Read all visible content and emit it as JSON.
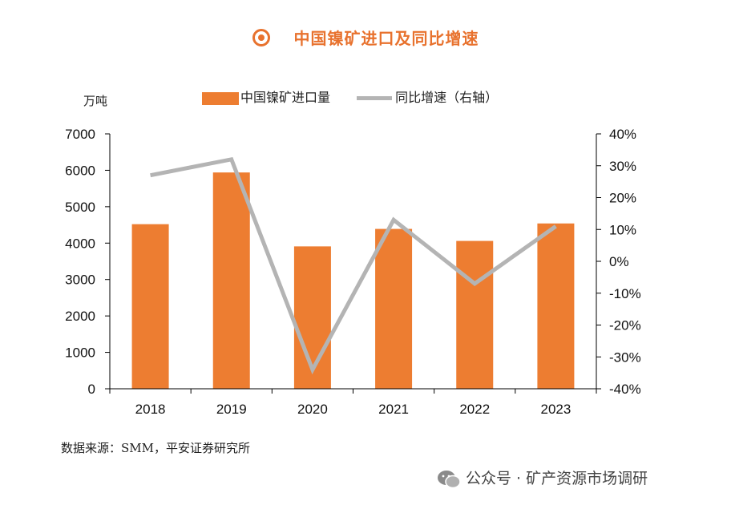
{
  "title": "中国镍矿进口及同比增速",
  "unit_left": "万吨",
  "source": "数据来源：SMM，平安证券研究所",
  "watermark": "公众号 · 矿产资源市场调研",
  "icons": {
    "title": "bullseye-icon",
    "watermark": "wechat-icon"
  },
  "colors": {
    "bar": "#ED7D31",
    "line": "#B4B4B4",
    "title": "#E8722E"
  },
  "chart_data": {
    "type": "bar",
    "categories": [
      "2018",
      "2019",
      "2020",
      "2021",
      "2022",
      "2023"
    ],
    "series": [
      {
        "name": "中国镍矿进口量",
        "type": "bar",
        "axis": "left",
        "values": [
          4520,
          5940,
          3910,
          4390,
          4060,
          4540
        ]
      },
      {
        "name": "同比增速（右轴）",
        "type": "line",
        "axis": "right",
        "values": [
          27,
          32,
          -34,
          13,
          -7,
          11
        ]
      }
    ],
    "ylim_left": [
      0,
      7000
    ],
    "yticks_left": [
      "0",
      "1000",
      "2000",
      "3000",
      "4000",
      "5000",
      "6000",
      "7000"
    ],
    "ylim_right": [
      -40,
      40
    ],
    "yticks_right": [
      "-40%",
      "-30%",
      "-20%",
      "-10%",
      "0%",
      "10%",
      "20%",
      "30%",
      "40%"
    ],
    "grid": false,
    "legend_position": "top"
  }
}
